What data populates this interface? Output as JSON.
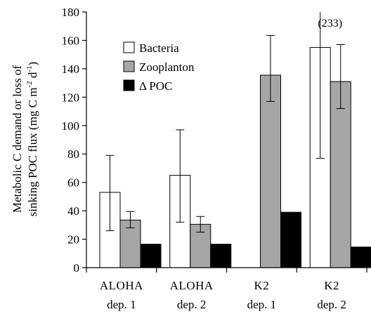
{
  "chart_data": {
    "type": "bar",
    "ylabel_line1": "Metabolic C demand or loss of",
    "ylabel_line2_prefix": "sinking POC flux (mg C m",
    "ylabel_line2_exp1": "-2",
    "ylabel_line2_mid": " d",
    "ylabel_line2_exp2": "-1",
    "ylabel_line2_suffix": ")",
    "ylim": [
      0,
      180
    ],
    "yticks": [
      "0",
      "20",
      "40",
      "60",
      "80",
      "100",
      "120",
      "140",
      "160",
      "180"
    ],
    "categories": [
      {
        "line1": "ALOHA",
        "line2": "dep. 1"
      },
      {
        "line1": "ALOHA",
        "line2": "dep. 2"
      },
      {
        "line1": "K2",
        "line2": "dep. 1"
      },
      {
        "line1": "K2",
        "line2": "dep. 2"
      }
    ],
    "series": [
      {
        "name": "Bacteria",
        "color": "#ffffff",
        "values": [
          53,
          65,
          0,
          155
        ],
        "err_low": [
          26,
          32,
          null,
          77
        ],
        "err_high": [
          79,
          97,
          null,
          180
        ]
      },
      {
        "name": "Zooplanton",
        "color": "#a6a6a6",
        "values": [
          33.5,
          30.5,
          135.5,
          131
        ],
        "err_low": [
          28,
          25,
          117,
          112
        ],
        "err_high": [
          39.5,
          36,
          163.5,
          157
        ]
      },
      {
        "name": "Δ POC",
        "color": "#000000",
        "values": [
          16.5,
          16.5,
          39,
          14.5
        ],
        "err_low": [
          null,
          null,
          null,
          null
        ],
        "err_high": [
          null,
          null,
          null,
          null
        ]
      }
    ],
    "annotation": "(233)",
    "legend_position": "top-left",
    "grid": false
  }
}
